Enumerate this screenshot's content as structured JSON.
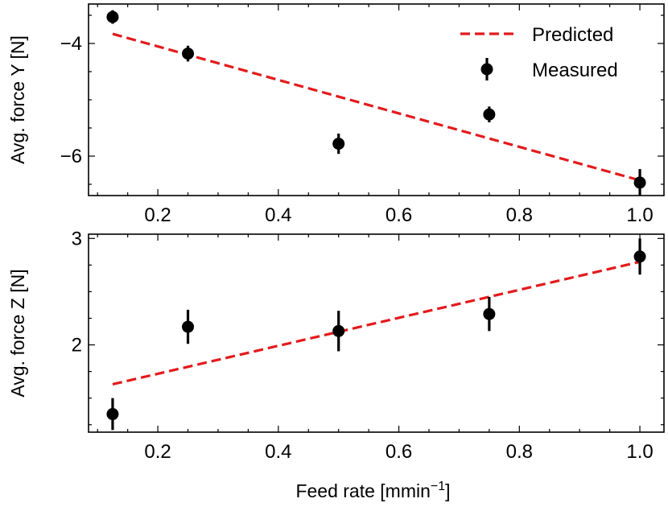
{
  "chart_data": [
    {
      "type": "scatter",
      "ylabel": "Avg. force Y [N]",
      "xlabel": "",
      "xlim": [
        0.085,
        1.04
      ],
      "ylim": [
        -6.7,
        -3.3
      ],
      "xticks": [
        0.2,
        0.4,
        0.6,
        0.8,
        1.0
      ],
      "xtick_labels": [
        "0.2",
        "0.4",
        "0.6",
        "0.8",
        "1.0"
      ],
      "yticks": [
        -6,
        -4
      ],
      "ytick_labels": [
        "−6",
        "−4"
      ],
      "legend": {
        "placement": "top-right",
        "entries": [
          {
            "label": "Predicted",
            "style": "dashed-line",
            "color": "#e31a1c"
          },
          {
            "label": "Measured",
            "style": "marker-errorbar",
            "color": "#000000"
          }
        ]
      },
      "series": [
        {
          "name": "Predicted",
          "kind": "line",
          "color": "#e31a1c",
          "x": [
            0.125,
            1.0
          ],
          "y": [
            -3.83,
            -6.43
          ]
        },
        {
          "name": "Measured",
          "kind": "errorbar",
          "color": "#000000",
          "x": [
            0.125,
            0.25,
            0.5,
            0.75,
            1.0
          ],
          "y": [
            -3.53,
            -4.18,
            -5.78,
            -5.26,
            -6.47
          ],
          "yerr": [
            0.12,
            0.14,
            0.18,
            0.14,
            0.24
          ]
        }
      ]
    },
    {
      "type": "scatter",
      "ylabel": "Avg. force Z [N]",
      "xlabel": "Feed rate [mmin−1]",
      "xlabel_parts": {
        "base": "Feed rate [mmin",
        "sup": "−1",
        "end": "]"
      },
      "xlim": [
        0.085,
        1.04
      ],
      "ylim": [
        1.18,
        3.04
      ],
      "xticks": [
        0.2,
        0.4,
        0.6,
        0.8,
        1.0
      ],
      "xtick_labels": [
        "0.2",
        "0.4",
        "0.6",
        "0.8",
        "1.0"
      ],
      "yticks": [
        2,
        3
      ],
      "ytick_labels": [
        "2",
        "3"
      ],
      "series": [
        {
          "name": "Predicted",
          "kind": "line",
          "color": "#e31a1c",
          "x": [
            0.125,
            1.0
          ],
          "y": [
            1.63,
            2.78
          ]
        },
        {
          "name": "Measured",
          "kind": "errorbar",
          "color": "#000000",
          "x": [
            0.125,
            0.25,
            0.5,
            0.75,
            1.0
          ],
          "y": [
            1.35,
            2.17,
            2.13,
            2.29,
            2.83
          ],
          "yerr": [
            0.15,
            0.16,
            0.19,
            0.16,
            0.17
          ]
        }
      ]
    }
  ]
}
